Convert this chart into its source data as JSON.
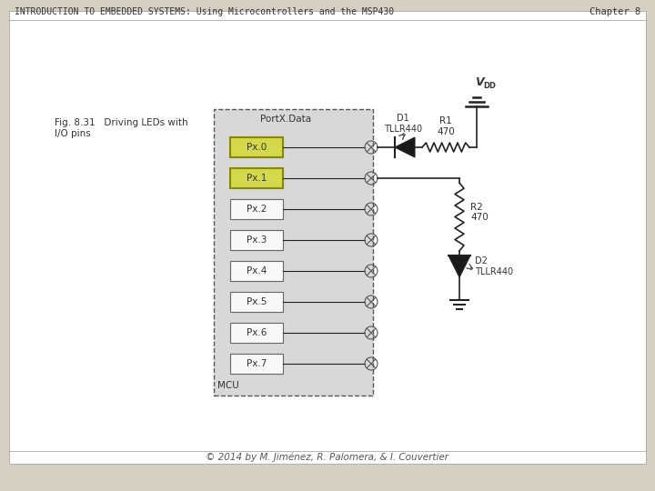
{
  "title": "INTRODUCTION TO EMBEDDED SYSTEMS: Using Microcontrollers and the MSP430",
  "chapter": "Chapter 8",
  "footer": "© 2014 by M. Jiménez, R. Palomera, & I. Couvertier",
  "fig_label": "Fig. 8.31   Driving LEDs with\nI/O pins",
  "bg_outer": "#d6d0c0",
  "bg_inner": "#ffffff",
  "bg_mcu": "#d8d8d8",
  "pin_highlight": "#d4d94a",
  "pin_labels": [
    "Px.0",
    "Px.1",
    "Px.2",
    "Px.3",
    "Px.4",
    "Px.5",
    "Px.6",
    "Px.7"
  ],
  "port_label": "PortX.Data",
  "mcu_label": "MCU",
  "d1_label": "D1\nTLLR440",
  "d2_label": "D2\nTLLR440",
  "r1_label": "R1\n470",
  "r2_label": "R2\n470",
  "vdd_label": "V",
  "vdd_sub": "DD",
  "header_color": "#333333",
  "line_color": "#222222",
  "text_color": "#333333"
}
